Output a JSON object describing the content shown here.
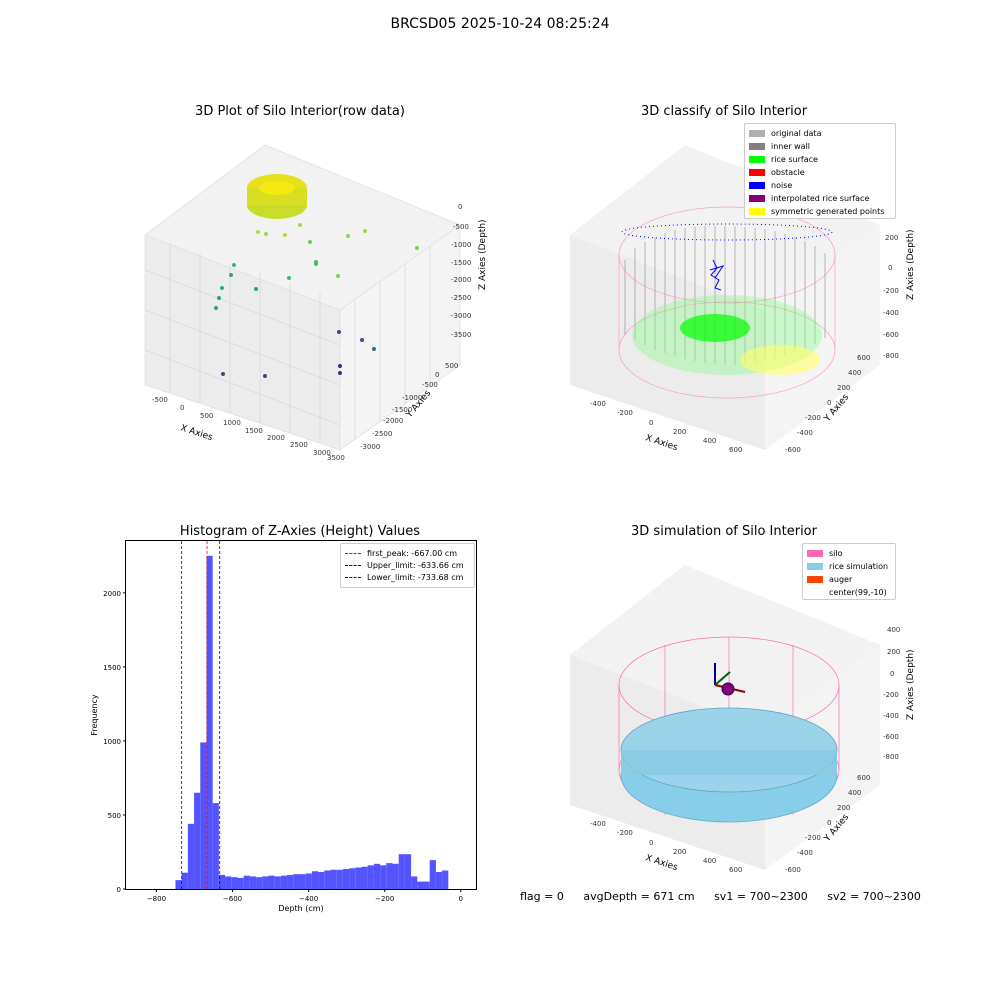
{
  "suptitle": "BRCSD05 2025-10-24 08:25:24",
  "panels": {
    "tl": {
      "title": "3D Plot of Silo Interior(row data)",
      "x_label": "X Axies",
      "y_label": "Y Axies",
      "z_label": "Z Axies (Depth)",
      "x_ticks": [
        "-500",
        "0",
        "500",
        "1000",
        "1500",
        "2000",
        "2500",
        "3000",
        "3500"
      ],
      "y_ticks": [
        "500",
        "0",
        "-500",
        "-1000",
        "-1500",
        "-2000",
        "-2500",
        "-3000"
      ],
      "z_ticks": [
        "0",
        "-500",
        "-1000",
        "-1500",
        "-2000",
        "-2500",
        "-3000",
        "-3500"
      ]
    },
    "tr": {
      "title": "3D classify of Silo Interior",
      "x_label": "X Axies",
      "y_label": "Y Axies",
      "z_label": "Z Axies (Depth)",
      "x_ticks": [
        "-400",
        "-200",
        "0",
        "200",
        "400",
        "600"
      ],
      "y_ticks": [
        "600",
        "400",
        "200",
        "0",
        "-200",
        "-400",
        "-600"
      ],
      "z_ticks": [
        "200",
        "0",
        "-200",
        "-400",
        "-600",
        "-800"
      ],
      "legend": [
        {
          "label": "original data",
          "color": "#b0b0b0"
        },
        {
          "label": "inner wall",
          "color": "#808080"
        },
        {
          "label": "rice surface",
          "color": "#00ff00"
        },
        {
          "label": "obstacle",
          "color": "#ff0000"
        },
        {
          "label": "noise",
          "color": "#0000ff"
        },
        {
          "label": "interpolated rice surface",
          "color": "#800080"
        },
        {
          "label": "symmetric generated points",
          "color": "#ffff00"
        }
      ]
    },
    "br": {
      "title": "3D simulation of Silo Interior",
      "x_label": "X Axies",
      "y_label": "Y Axies",
      "z_label": "Z Axies (Depth)",
      "x_ticks": [
        "-400",
        "-200",
        "0",
        "200",
        "400",
        "600"
      ],
      "y_ticks": [
        "600",
        "400",
        "200",
        "0",
        "-200",
        "-400",
        "-600"
      ],
      "z_ticks": [
        "400",
        "200",
        "0",
        "-200",
        "-400",
        "-600",
        "-800"
      ],
      "legend": [
        {
          "label": "silo",
          "color": "#ff69b4"
        },
        {
          "label": "rice simulation",
          "color": "#87ceeb"
        },
        {
          "label": "auger",
          "color": "#ff4500"
        },
        {
          "label": "center(99,-10)",
          "color": ""
        }
      ]
    }
  },
  "status": {
    "flag": "flag = 0",
    "avg_depth": "avgDepth = 671 cm",
    "sv1": "sv1 = 700~2300",
    "sv2": "sv2 = 700~2300"
  },
  "chart_data": {
    "type": "bar",
    "title": "Histogram of Z-Axies (Height) Values",
    "xlabel": "Depth (cm)",
    "ylabel": "Frequency",
    "xlim": [
      -880,
      40
    ],
    "ylim": [
      0,
      2350
    ],
    "x_ticks": [
      -800,
      -600,
      -400,
      -200,
      0
    ],
    "y_ticks": [
      0,
      500,
      1000,
      1500,
      2000
    ],
    "bin_width": 16.3,
    "bin_starts": [
      -750.0,
      -733.7,
      -717.4,
      -701.1,
      -684.8,
      -668.5,
      -652.2,
      -635.9,
      -619.6,
      -603.3,
      -587.0,
      -570.7,
      -554.4,
      -538.1,
      -521.8,
      -505.5,
      -489.2,
      -472.9,
      -456.6,
      -440.3,
      -424.0,
      -407.7,
      -391.4,
      -375.1,
      -358.8,
      -342.5,
      -326.2,
      -309.9,
      -293.6,
      -277.3,
      -261.0,
      -244.7,
      -228.4,
      -212.1,
      -195.8,
      -179.5,
      -163.2,
      -146.9,
      -130.6,
      -114.3,
      -98.0,
      -81.7,
      -65.4,
      -49.1,
      -32.8,
      -16.5
    ],
    "values": [
      60,
      110,
      440,
      650,
      990,
      2250,
      580,
      95,
      85,
      80,
      75,
      90,
      85,
      80,
      85,
      90,
      85,
      90,
      95,
      100,
      100,
      105,
      120,
      115,
      125,
      130,
      130,
      135,
      140,
      145,
      150,
      160,
      170,
      160,
      175,
      170,
      235,
      235,
      85,
      50,
      50,
      195,
      115,
      125,
      0,
      0
    ],
    "lines": [
      {
        "name": "first_peak: -667.00 cm",
        "x": -667.0,
        "color": "#ff0000"
      },
      {
        "name": "Upper_limit: -633.66 cm",
        "x": -633.66,
        "color": "#00008b"
      },
      {
        "name": "Lower_limit: -733.68 cm",
        "x": -733.68,
        "color": "#0000ff"
      }
    ],
    "bar_color": "#4b4bff"
  }
}
